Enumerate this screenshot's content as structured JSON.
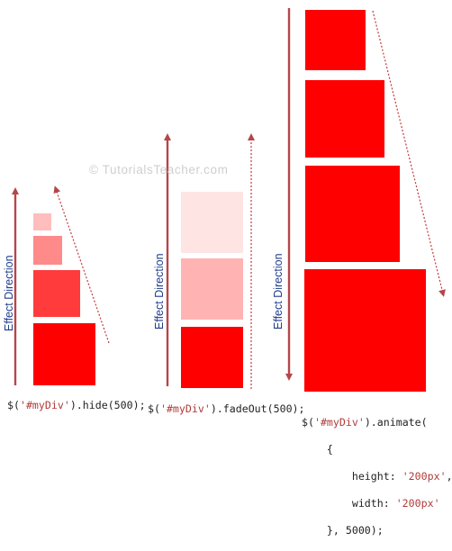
{
  "watermark": "© TutorialsTeacher.com",
  "panels": [
    {
      "effect_label": "Effect Direction",
      "code_prefix": "$(",
      "code_selector": "'#myDiv'",
      "code_suffix": ").hide(500);"
    },
    {
      "effect_label": "Effect Direction",
      "code_prefix": "$(",
      "code_selector": "'#myDiv'",
      "code_suffix": ").fadeOut(500);"
    },
    {
      "effect_label": "Effect Direction",
      "code_prefix": "$(",
      "code_selector": "'#myDiv'",
      "code_suffix": ").animate(",
      "code_lines": [
        "    {",
        "        height: ",
        "        width: ",
        "    }, 5000);"
      ],
      "height_value": "'200px'",
      "width_value": "'200px'",
      "height_suffix": ",",
      "width_suffix": ""
    }
  ],
  "colors": {
    "arrow": "#b5464b",
    "box_red": "#ff0000",
    "label_blue": "#1f3c8c"
  }
}
